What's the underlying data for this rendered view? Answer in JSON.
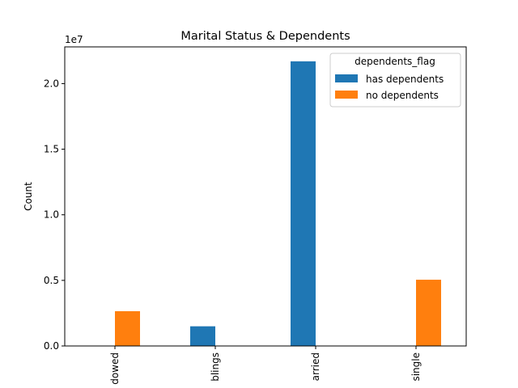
{
  "chart_data": {
    "type": "bar",
    "title": "Marital Status & Dependents",
    "xlabel": "",
    "ylabel": "Count",
    "offset_label": "1e7",
    "categories": [
      "dowed",
      "blings",
      "arried",
      "single"
    ],
    "series": [
      {
        "name": "has dependents",
        "color": "#1f77b4",
        "values": [
          0,
          1500000,
          21700000,
          0
        ]
      },
      {
        "name": "no dependents",
        "color": "#ff7f0e",
        "values": [
          2650000,
          0,
          0,
          5050000
        ]
      }
    ],
    "ylim": [
      0,
      22800000
    ],
    "yticks": [
      0,
      5000000,
      10000000,
      15000000,
      20000000
    ],
    "ytick_labels": [
      "0.0",
      "0.5",
      "1.0",
      "1.5",
      "2.0"
    ],
    "legend": {
      "title": "dependents_flag",
      "placement": "top-right"
    },
    "grid": false
  }
}
